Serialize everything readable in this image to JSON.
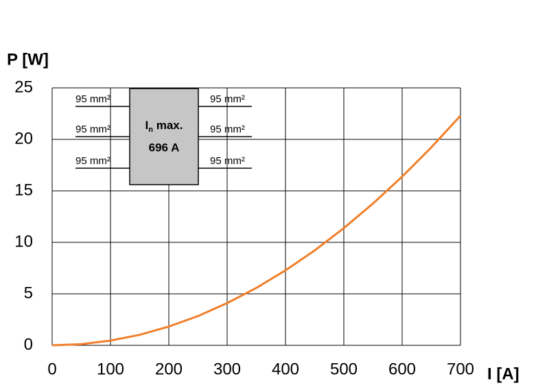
{
  "chart_data": {
    "type": "line",
    "xlabel": "I [A]",
    "ylabel": "P [W]",
    "x": [
      0,
      50,
      100,
      150,
      200,
      250,
      300,
      350,
      400,
      450,
      500,
      550,
      600,
      650,
      700
    ],
    "values": [
      0,
      0.11,
      0.46,
      1.02,
      1.82,
      2.84,
      4.1,
      5.57,
      7.28,
      9.21,
      11.38,
      13.77,
      16.38,
      19.22,
      22.3
    ],
    "color": "#f07f2a",
    "xlim": [
      0,
      700
    ],
    "xticks": [
      0,
      100,
      200,
      300,
      400,
      500,
      600,
      700
    ],
    "ylim": [
      0,
      25
    ],
    "yticks": [
      0,
      5,
      10,
      15,
      20,
      25
    ],
    "grid": true,
    "inset": {
      "symbol": "I",
      "subscript": "n",
      "rest": " max.",
      "rating": "696 A",
      "wires": [
        "95 mm²",
        "95 mm²",
        "95 mm²",
        "95 mm²",
        "95 mm²",
        "95 mm²"
      ]
    }
  }
}
